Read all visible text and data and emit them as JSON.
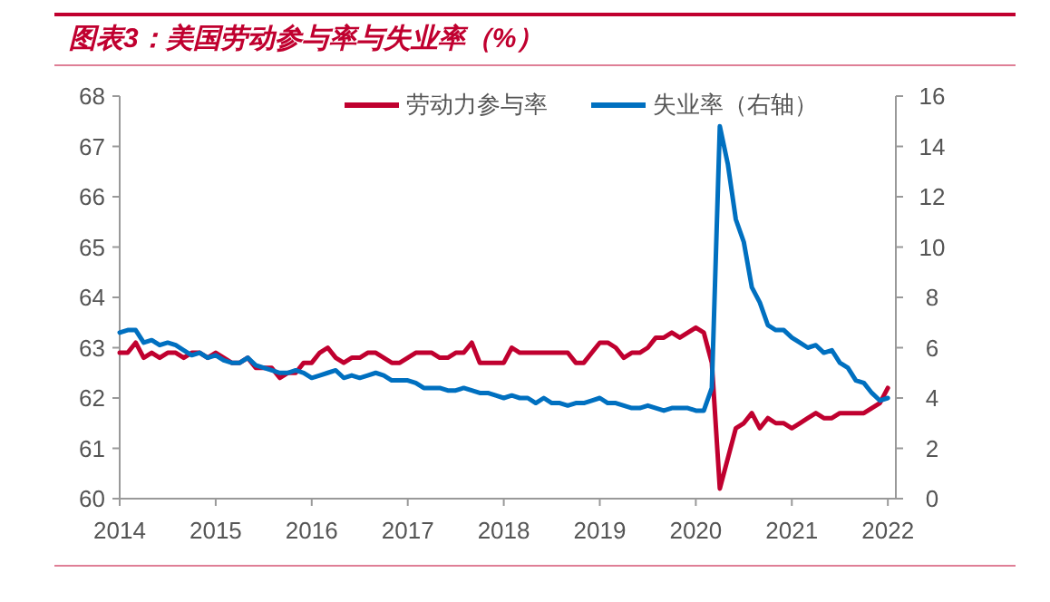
{
  "chart_data": {
    "type": "line",
    "title": "图表3：美国劳动参与率与失业率（%）",
    "legend": "top",
    "grid": false,
    "marker": "none",
    "line_style": "solid",
    "xlim": [
      "2014-01",
      "2022-02"
    ],
    "xticks": [
      "2014",
      "2015",
      "2016",
      "2017",
      "2018",
      "2019",
      "2020",
      "2021",
      "2022"
    ],
    "ylim": [
      60,
      68
    ],
    "yticks": [
      60,
      61,
      62,
      63,
      64,
      65,
      66,
      67,
      68
    ],
    "y2lim": [
      0,
      16
    ],
    "y2ticks": [
      0,
      2,
      4,
      6,
      8,
      10,
      12,
      14,
      16
    ],
    "x": [
      "2014-01",
      "2014-02",
      "2014-03",
      "2014-04",
      "2014-05",
      "2014-06",
      "2014-07",
      "2014-08",
      "2014-09",
      "2014-10",
      "2014-11",
      "2014-12",
      "2015-01",
      "2015-02",
      "2015-03",
      "2015-04",
      "2015-05",
      "2015-06",
      "2015-07",
      "2015-08",
      "2015-09",
      "2015-10",
      "2015-11",
      "2015-12",
      "2016-01",
      "2016-02",
      "2016-03",
      "2016-04",
      "2016-05",
      "2016-06",
      "2016-07",
      "2016-08",
      "2016-09",
      "2016-10",
      "2016-11",
      "2016-12",
      "2017-01",
      "2017-02",
      "2017-03",
      "2017-04",
      "2017-05",
      "2017-06",
      "2017-07",
      "2017-08",
      "2017-09",
      "2017-10",
      "2017-11",
      "2017-12",
      "2018-01",
      "2018-02",
      "2018-03",
      "2018-04",
      "2018-05",
      "2018-06",
      "2018-07",
      "2018-08",
      "2018-09",
      "2018-10",
      "2018-11",
      "2018-12",
      "2019-01",
      "2019-02",
      "2019-03",
      "2019-04",
      "2019-05",
      "2019-06",
      "2019-07",
      "2019-08",
      "2019-09",
      "2019-10",
      "2019-11",
      "2019-12",
      "2020-01",
      "2020-02",
      "2020-03",
      "2020-04",
      "2020-05",
      "2020-06",
      "2020-07",
      "2020-08",
      "2020-09",
      "2020-10",
      "2020-11",
      "2020-12",
      "2021-01",
      "2021-02",
      "2021-03",
      "2021-04",
      "2021-05",
      "2021-06",
      "2021-07",
      "2021-08",
      "2021-09",
      "2021-10",
      "2021-11",
      "2021-12",
      "2022-01"
    ],
    "series": [
      {
        "name": "劳动力参与率",
        "color": "#c0002f",
        "values": [
          62.9,
          62.9,
          63.1,
          62.8,
          62.9,
          62.8,
          62.9,
          62.9,
          62.8,
          62.9,
          62.9,
          62.8,
          62.9,
          62.8,
          62.7,
          62.7,
          62.8,
          62.6,
          62.6,
          62.6,
          62.4,
          62.5,
          62.5,
          62.7,
          62.7,
          62.9,
          63.0,
          62.8,
          62.7,
          62.8,
          62.8,
          62.9,
          62.9,
          62.8,
          62.7,
          62.7,
          62.8,
          62.9,
          62.9,
          62.9,
          62.8,
          62.8,
          62.9,
          62.9,
          63.1,
          62.7,
          62.7,
          62.7,
          62.7,
          63.0,
          62.9,
          62.9,
          62.9,
          62.9,
          62.9,
          62.9,
          62.9,
          62.7,
          62.7,
          62.9,
          63.1,
          63.1,
          63.0,
          62.8,
          62.9,
          62.9,
          63.0,
          63.2,
          63.2,
          63.3,
          63.2,
          63.3,
          63.4,
          63.3,
          62.7,
          60.2,
          60.8,
          61.4,
          61.5,
          61.7,
          61.4,
          61.6,
          61.5,
          61.5,
          61.4,
          61.5,
          61.6,
          61.7,
          61.6,
          61.6,
          61.7,
          61.7,
          61.7,
          61.7,
          61.8,
          61.9,
          62.2
        ]
      },
      {
        "name": "失业率（右轴）",
        "color": "#0070c0",
        "axis": "y2",
        "values": [
          6.6,
          6.7,
          6.7,
          6.2,
          6.3,
          6.1,
          6.2,
          6.1,
          5.9,
          5.7,
          5.8,
          5.6,
          5.7,
          5.5,
          5.4,
          5.4,
          5.6,
          5.3,
          5.2,
          5.1,
          5.0,
          5.0,
          5.1,
          5.0,
          4.8,
          4.9,
          5.0,
          5.1,
          4.8,
          4.9,
          4.8,
          4.9,
          5.0,
          4.9,
          4.7,
          4.7,
          4.7,
          4.6,
          4.4,
          4.4,
          4.4,
          4.3,
          4.3,
          4.4,
          4.3,
          4.2,
          4.2,
          4.1,
          4.0,
          4.1,
          4.0,
          4.0,
          3.8,
          4.0,
          3.8,
          3.8,
          3.7,
          3.8,
          3.8,
          3.9,
          4.0,
          3.8,
          3.8,
          3.7,
          3.6,
          3.6,
          3.7,
          3.6,
          3.5,
          3.6,
          3.6,
          3.6,
          3.5,
          3.5,
          4.4,
          14.8,
          13.3,
          11.1,
          10.2,
          8.4,
          7.8,
          6.9,
          6.7,
          6.7,
          6.4,
          6.2,
          6.0,
          6.1,
          5.8,
          5.9,
          5.4,
          5.2,
          4.7,
          4.6,
          4.2,
          3.9,
          4.0
        ]
      }
    ]
  }
}
